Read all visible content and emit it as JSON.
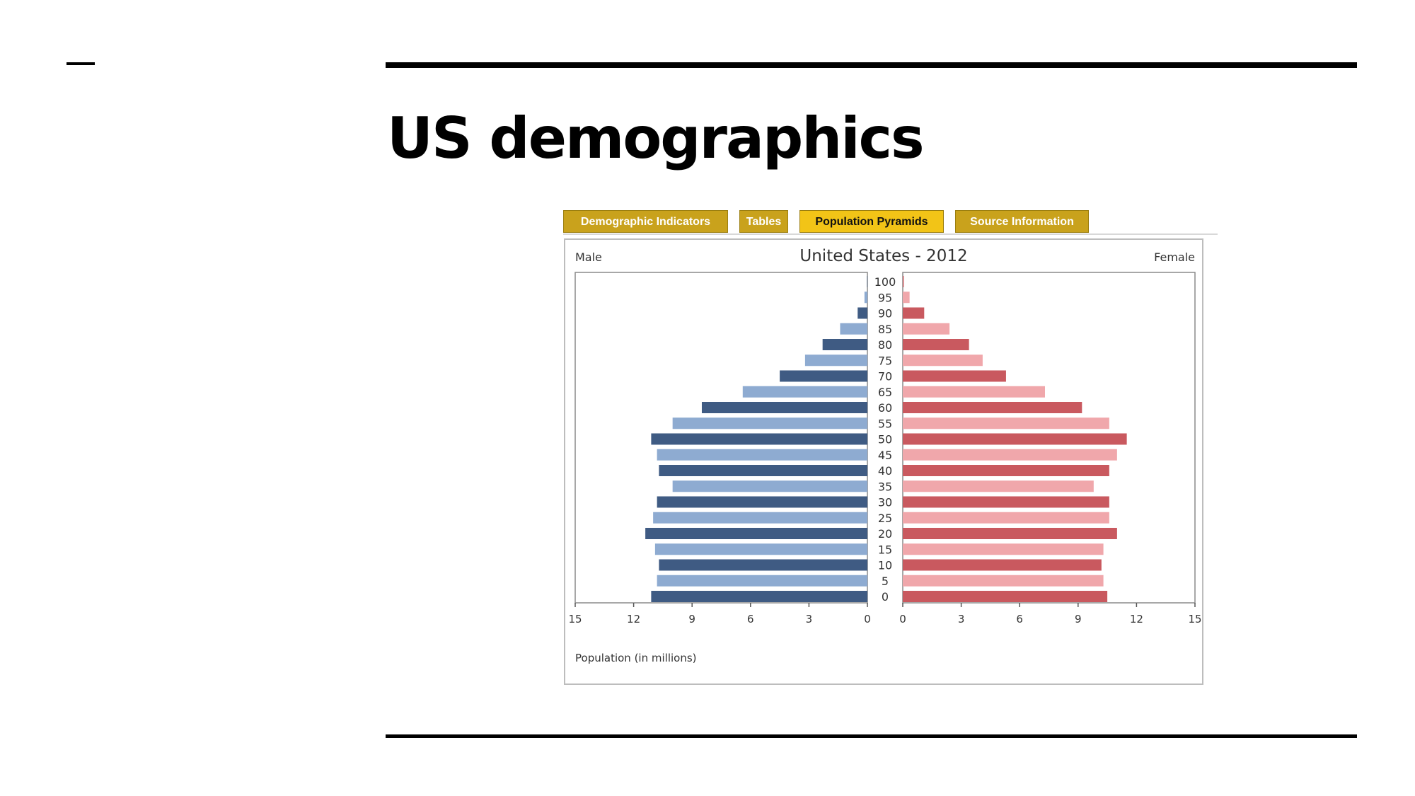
{
  "slide": {
    "title": "US demographics"
  },
  "tabs": [
    {
      "label": "Demographic Indicators",
      "active": false
    },
    {
      "label": "Tables",
      "active": false
    },
    {
      "label": "Population Pyramids",
      "active": true
    },
    {
      "label": "Source Information",
      "active": false
    }
  ],
  "colors": {
    "male_dark": "#3f5b83",
    "male_light": "#8eabd1",
    "female_dark": "#c9595f",
    "female_light": "#f0a7ab",
    "tab_bg": "#c9a21c",
    "tab_active_bg": "#f2c417"
  },
  "chart_data": {
    "type": "bar",
    "title": "United States - 2012",
    "left_label": "Male",
    "right_label": "Female",
    "xlabel": "Population (in millions)",
    "age_groups": [
      "0",
      "5",
      "10",
      "15",
      "20",
      "25",
      "30",
      "35",
      "40",
      "45",
      "50",
      "55",
      "60",
      "65",
      "70",
      "75",
      "80",
      "85",
      "90",
      "95",
      "100"
    ],
    "xlim": [
      0,
      15
    ],
    "x_ticks": [
      "15",
      "12",
      "9",
      "6",
      "3",
      "0",
      "0",
      "3",
      "6",
      "9",
      "12",
      "15"
    ],
    "series": [
      {
        "name": "Male",
        "values": [
          11.1,
          10.8,
          10.7,
          10.9,
          11.4,
          11.0,
          10.8,
          10.0,
          10.7,
          10.8,
          11.1,
          10.0,
          8.5,
          6.4,
          4.5,
          3.2,
          2.3,
          1.4,
          0.5,
          0.15,
          0.02
        ]
      },
      {
        "name": "Female",
        "values": [
          10.5,
          10.3,
          10.2,
          10.3,
          11.0,
          10.6,
          10.6,
          9.8,
          10.6,
          11.0,
          11.5,
          10.6,
          9.2,
          7.3,
          5.3,
          4.1,
          3.4,
          2.4,
          1.1,
          0.35,
          0.05
        ]
      }
    ],
    "grid": false
  }
}
